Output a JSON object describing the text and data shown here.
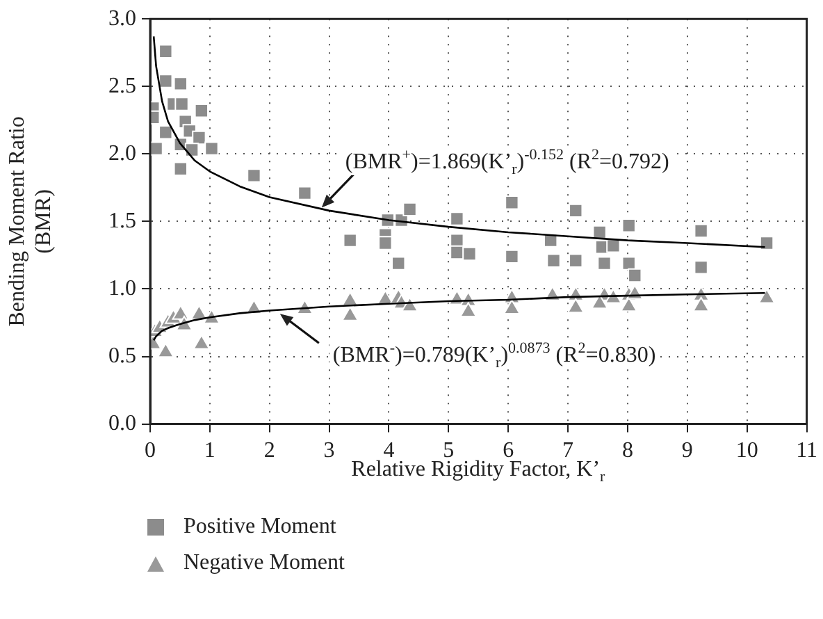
{
  "chart_data": {
    "type": "scatter",
    "xlabel": "Relative Rigidity Factor, K’$_{r}$",
    "ylabel": "Bending Moment Ratio (BMR)",
    "xlim": [
      0,
      11
    ],
    "xticks": [
      0,
      1,
      2,
      3,
      4,
      5,
      6,
      7,
      8,
      9,
      10,
      11
    ],
    "ylim": [
      0,
      3
    ],
    "yticks": [
      {
        "value": 0,
        "label": "0.0"
      },
      {
        "value": 0.5,
        "label": "0.5"
      },
      {
        "value": 1,
        "label": "1.0"
      },
      {
        "value": 1.5,
        "label": "1.5"
      },
      {
        "value": 2,
        "label": "2.0"
      },
      {
        "value": 2.5,
        "label": "2.5"
      },
      {
        "value": 3,
        "label": "3.0"
      }
    ],
    "grid": true,
    "legend": "bottom left",
    "series": [
      {
        "name": "Positive Moment",
        "color": "#8c8c8c",
        "marker": "square",
        "x": [
          0.26,
          0.26,
          0.51,
          0.05,
          0.05,
          0.39,
          0.53,
          0.59,
          0.86,
          0.26,
          0.66,
          0.82,
          0.1,
          0.51,
          0.7,
          1.03,
          0.51,
          1.74,
          2.59,
          3.35,
          3.94,
          3.94,
          3.98,
          4.21,
          4.35,
          4.16,
          5.14,
          5.14,
          5.14,
          5.35,
          6.06,
          6.06,
          6.71,
          6.76,
          7.13,
          7.13,
          7.53,
          7.57,
          7.61,
          7.76,
          8.02,
          8.02,
          8.12,
          9.23,
          9.23,
          10.33
        ],
        "values": [
          2.76,
          2.54,
          2.52,
          2.34,
          2.27,
          2.37,
          2.37,
          2.24,
          2.32,
          2.16,
          2.17,
          2.12,
          2.04,
          2.07,
          2.03,
          2.04,
          1.89,
          1.84,
          1.71,
          1.36,
          1.4,
          1.34,
          1.51,
          1.51,
          1.59,
          1.19,
          1.52,
          1.36,
          1.27,
          1.26,
          1.64,
          1.24,
          1.36,
          1.21,
          1.58,
          1.21,
          1.42,
          1.31,
          1.19,
          1.32,
          1.47,
          1.19,
          1.1,
          1.43,
          1.16,
          1.34
        ]
      },
      {
        "name": "Negative Moment",
        "color": "#999999",
        "marker": "triangle",
        "x": [
          0.05,
          0.08,
          0.16,
          0.26,
          0.3,
          0.39,
          0.51,
          0.57,
          0.82,
          0.86,
          1.03,
          1.74,
          2.59,
          3.35,
          3.35,
          3.94,
          4.16,
          4.21,
          4.35,
          5.14,
          5.33,
          5.33,
          6.06,
          6.06,
          6.74,
          7.13,
          7.13,
          7.61,
          7.53,
          7.76,
          8.02,
          8.02,
          8.12,
          9.23,
          9.23,
          10.33
        ],
        "values": [
          0.59,
          0.68,
          0.71,
          0.53,
          0.75,
          0.78,
          0.81,
          0.73,
          0.81,
          0.59,
          0.78,
          0.85,
          0.85,
          0.91,
          0.8,
          0.92,
          0.93,
          0.89,
          0.87,
          0.92,
          0.91,
          0.83,
          0.93,
          0.85,
          0.95,
          0.95,
          0.86,
          0.95,
          0.89,
          0.93,
          0.95,
          0.87,
          0.96,
          0.95,
          0.87,
          0.93
        ]
      },
      {
        "type": "line",
        "color": "#000000",
        "marker": "none",
        "x": [
          0.06,
          0.1,
          0.2,
          0.3,
          0.5,
          0.75,
          1,
          1.5,
          2,
          3,
          4,
          5,
          6,
          7,
          8,
          9,
          10.3
        ],
        "values": [
          2.87,
          2.65,
          2.39,
          2.24,
          2.08,
          1.95,
          1.87,
          1.76,
          1.68,
          1.58,
          1.51,
          1.46,
          1.42,
          1.39,
          1.36,
          1.34,
          1.31
        ]
      },
      {
        "type": "line",
        "color": "#000000",
        "marker": "none",
        "x": [
          0.06,
          0.1,
          0.2,
          0.3,
          0.5,
          0.75,
          1,
          1.5,
          2,
          3,
          4,
          5,
          6,
          7,
          8,
          9,
          10.3
        ],
        "values": [
          0.62,
          0.65,
          0.69,
          0.71,
          0.74,
          0.77,
          0.79,
          0.82,
          0.84,
          0.87,
          0.89,
          0.91,
          0.92,
          0.94,
          0.95,
          0.96,
          0.97
        ]
      }
    ],
    "annotations": [
      "(BMR$^{+}$)=1.869(K’$_{r}$)$^{-0.152}$ (R$^{2}$=0.792)",
      "(BMR$^{-}$)=0.789(K’$_{r}$)$^{0.0873}$ (R$^{2}$=0.830)"
    ]
  }
}
